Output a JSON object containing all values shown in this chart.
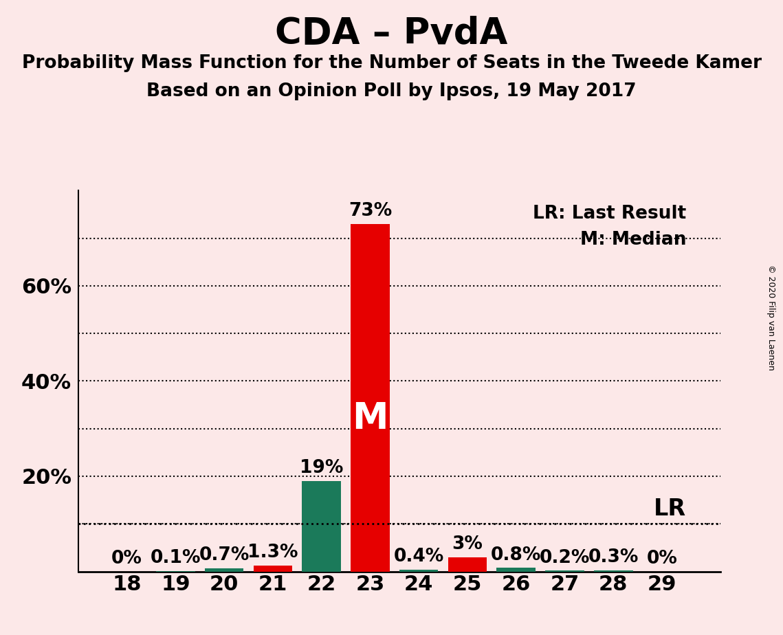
{
  "title": "CDA – PvdA",
  "subtitle1": "Probability Mass Function for the Number of Seats in the Tweede Kamer",
  "subtitle2": "Based on an Opinion Poll by Ipsos, 19 May 2017",
  "copyright": "© 2020 Filip van Laenen",
  "seats": [
    18,
    19,
    20,
    21,
    22,
    23,
    24,
    25,
    26,
    27,
    28,
    29
  ],
  "values": [
    0.0,
    0.1,
    0.7,
    1.3,
    19.0,
    73.0,
    0.4,
    3.0,
    0.8,
    0.2,
    0.3,
    0.0
  ],
  "colors": [
    "#1b7a5a",
    "#1b7a5a",
    "#1b7a5a",
    "#e60000",
    "#1b7a5a",
    "#e60000",
    "#1b7a5a",
    "#e60000",
    "#1b7a5a",
    "#1b7a5a",
    "#1b7a5a",
    "#1b7a5a"
  ],
  "bar_labels": [
    "0%",
    "0.1%",
    "0.7%",
    "1.3%",
    "19%",
    "73%",
    "0.4%",
    "3%",
    "0.8%",
    "0.2%",
    "0.3%",
    "0%"
  ],
  "median_seat": 23,
  "lr_value": 10.0,
  "lr_label": "LR",
  "legend_lr": "LR: Last Result",
  "legend_m": "M: Median",
  "background_color": "#fce8e8",
  "ylim": [
    0,
    80
  ],
  "ytick_labeled": [
    20,
    40,
    60
  ],
  "ytick_all": [
    10,
    20,
    30,
    40,
    50,
    60,
    70
  ],
  "title_fontsize": 38,
  "subtitle_fontsize": 19,
  "axis_tick_fontsize": 22,
  "bar_label_fontsize": 19,
  "m_label_fontsize": 38,
  "lr_fontsize": 24,
  "legend_fontsize": 19
}
